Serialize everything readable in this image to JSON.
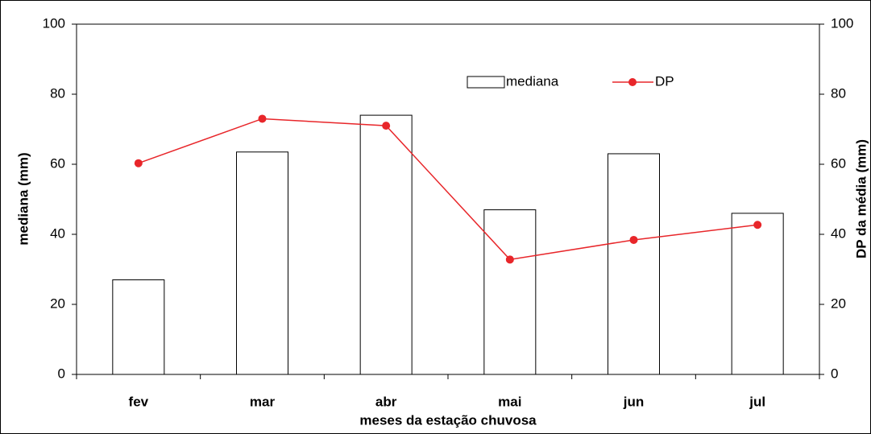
{
  "chart_data": {
    "type": "bar-line",
    "categories": [
      "fev",
      "mar",
      "abr",
      "mai",
      "jun",
      "jul"
    ],
    "x_label": "meses da estação chuvosa",
    "y_label": "mediana (mm)",
    "y2_label": "DP da média (mm)",
    "ylim": [
      0,
      100
    ],
    "yticks": [
      0,
      20,
      40,
      60,
      80,
      100
    ],
    "y2lim": [
      0,
      100
    ],
    "y2ticks": [
      0,
      20,
      40,
      60,
      80,
      100
    ],
    "series": [
      {
        "name": "mediana",
        "kind": "bar",
        "color": "#ffffff",
        "values": [
          27,
          63.5,
          74,
          47,
          63,
          46
        ]
      },
      {
        "name": "DP",
        "kind": "line",
        "axis": "y2",
        "color": "#e8262a",
        "values": [
          60.3,
          73,
          71,
          32.8,
          38.4,
          42.7
        ]
      }
    ],
    "legend": "top-right"
  }
}
